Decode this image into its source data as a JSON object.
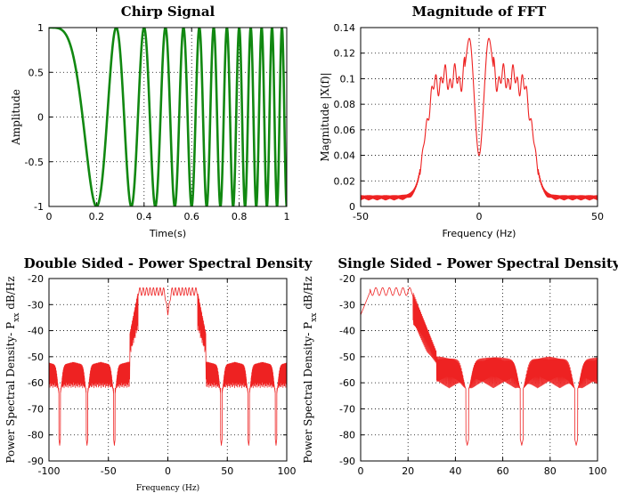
{
  "chart_data": [
    {
      "id": "chirp",
      "type": "line",
      "title": "Chirp Signal",
      "xlabel": "Time(s)",
      "ylabel": "Amplitude",
      "xlim": [
        0,
        1
      ],
      "ylim": [
        -1,
        1
      ],
      "xticks": [
        0,
        0.2,
        0.4,
        0.6,
        0.8,
        1
      ],
      "xticklabels": [
        "0",
        "0.2",
        "0.4",
        "0.6",
        "0.8",
        "1"
      ],
      "yticks": [
        -1,
        -0.5,
        0,
        0.5,
        1
      ],
      "yticklabels": [
        "-1",
        "-0.5",
        "0",
        "0.5",
        "1"
      ],
      "grid": true,
      "color": "#118811",
      "series": [
        {
          "function": "cos(2*pi*(0 + 25/2*t)*t)",
          "f0": 0,
          "f1": 25,
          "t_range": [
            0,
            1
          ]
        }
      ]
    },
    {
      "id": "fft",
      "type": "line",
      "title": "Magnitude of FFT",
      "xlabel": "Frequency (Hz)",
      "ylabel": "Magnitude |X(f)|",
      "xlim": [
        -50,
        50
      ],
      "ylim": [
        0,
        0.14
      ],
      "xticks": [
        -50,
        0,
        50
      ],
      "xticklabels": [
        "-50",
        "0",
        "50"
      ],
      "yticks": [
        0,
        0.02,
        0.04,
        0.06,
        0.08,
        0.1,
        0.12,
        0.14
      ],
      "yticklabels": [
        "0",
        "0.02",
        "0.04",
        "0.06",
        "0.08",
        "0.1",
        "0.12",
        "0.14"
      ],
      "grid": true,
      "color": "#ee2222",
      "series": [
        {
          "band_hz": [
            -25,
            25
          ],
          "plateau": 0.1,
          "peak": 0.133,
          "peak_at_hz": [
            -4,
            4
          ],
          "center_dip": 0.04,
          "floor": 0.005
        }
      ]
    },
    {
      "id": "psd2",
      "type": "line",
      "title": "Double Sided - Power Spectral Density",
      "xlabel": "Frequency (Hz)",
      "ylabel": "Power Spectral Density- P_xx dB/Hz",
      "ylabel_text": "Power Spectral Density- P",
      "ylabel_sub": "xx",
      "ylabel_tail": " dB/Hz",
      "xlim": [
        -100,
        100
      ],
      "ylim": [
        -90,
        -20
      ],
      "xticks": [
        -100,
        -50,
        0,
        50,
        100
      ],
      "xticklabels": [
        "-100",
        "-50",
        "0",
        "50",
        "100"
      ],
      "yticks": [
        -90,
        -80,
        -70,
        -60,
        -50,
        -40,
        -30,
        -20
      ],
      "yticklabels": [
        "-90",
        "-80",
        "-70",
        "-60",
        "-50",
        "-40",
        "-30",
        "-20"
      ],
      "grid": true,
      "color": "#ee2222",
      "series": [
        {
          "passband_hz": [
            -25,
            25
          ],
          "passband_db": -25,
          "center_db": -34,
          "lobe_nulls_hz": [
            -91,
            -68,
            -45,
            45,
            68,
            91
          ],
          "lobe_peaks_db": -52,
          "floor_db": -62,
          "deep_null_db": -84
        }
      ]
    },
    {
      "id": "psd1",
      "type": "line",
      "title": "Single Sided - Power Spectral Density",
      "xlabel": "",
      "ylabel": "Power Spectral Density- P_xx dB/Hz",
      "ylabel_text": "Power Spectral Density- P",
      "ylabel_sub": "xx",
      "ylabel_tail": " dB/Hz",
      "xlim": [
        0,
        100
      ],
      "ylim": [
        -90,
        -20
      ],
      "xticks": [
        0,
        20,
        40,
        60,
        80,
        100
      ],
      "xticklabels": [
        "0",
        "20",
        "40",
        "60",
        "80",
        "100"
      ],
      "yticks": [
        -90,
        -80,
        -70,
        -60,
        -50,
        -40,
        -30,
        -20
      ],
      "yticklabels": [
        "-90",
        "-80",
        "-70",
        "-60",
        "-50",
        "-40",
        "-30",
        "-20"
      ],
      "grid": true,
      "color": "#ee2222",
      "series": [
        {
          "start_db": -34,
          "passband_hz": [
            0,
            22
          ],
          "passband_db": -25,
          "lobe_nulls_hz": [
            45,
            68,
            91
          ],
          "lobe_peaks_db": -50,
          "floor_db": -62,
          "deep_null_db": -84
        }
      ]
    }
  ]
}
